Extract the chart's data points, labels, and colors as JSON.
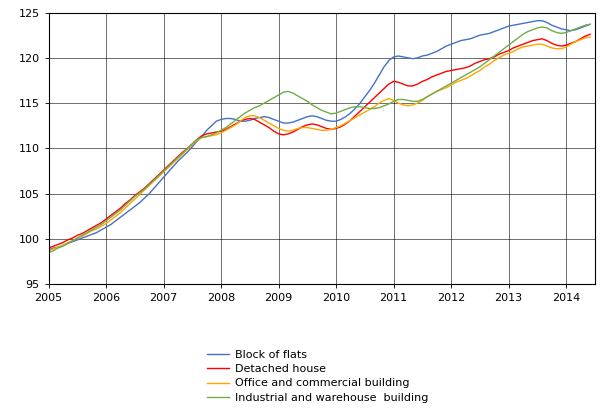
{
  "ylim": [
    95,
    125
  ],
  "yticks": [
    95,
    100,
    105,
    110,
    115,
    120,
    125
  ],
  "colors": {
    "block_of_flats": "#4472C4",
    "detached_house": "#FF0000",
    "office_commercial": "#FFA500",
    "industrial_warehouse": "#70AD47"
  },
  "legend_labels": [
    "Block of flats",
    "Detached house",
    "Office and commercial building",
    "Industrial and warehouse  building"
  ],
  "year_ticks": [
    2005,
    2006,
    2007,
    2008,
    2009,
    2010,
    2011,
    2012,
    2013,
    2014
  ],
  "block_of_flats": [
    98.8,
    99.0,
    99.1,
    99.3,
    99.5,
    99.7,
    99.9,
    100.1,
    100.3,
    100.5,
    100.7,
    101.0,
    101.3,
    101.6,
    102.0,
    102.4,
    102.8,
    103.2,
    103.6,
    104.0,
    104.5,
    105.0,
    105.6,
    106.2,
    106.8,
    107.4,
    108.0,
    108.6,
    109.1,
    109.6,
    110.2,
    110.8,
    111.3,
    112.0,
    112.5,
    113.0,
    113.2,
    113.3,
    113.3,
    113.2,
    113.0,
    113.0,
    113.1,
    113.3,
    113.4,
    113.5,
    113.4,
    113.2,
    113.0,
    112.8,
    112.8,
    112.9,
    113.1,
    113.3,
    113.5,
    113.6,
    113.5,
    113.3,
    113.1,
    113.0,
    113.0,
    113.2,
    113.5,
    113.9,
    114.4,
    115.0,
    115.7,
    116.4,
    117.2,
    118.1,
    119.0,
    119.7,
    120.1,
    120.2,
    120.1,
    120.0,
    119.9,
    120.0,
    120.2,
    120.3,
    120.5,
    120.7,
    121.0,
    121.3,
    121.5,
    121.7,
    121.9,
    122.0,
    122.1,
    122.3,
    122.5,
    122.6,
    122.7,
    122.9,
    123.1,
    123.3,
    123.5,
    123.6,
    123.7,
    123.8,
    123.9,
    124.0,
    124.1,
    124.1,
    123.9,
    123.6,
    123.4,
    123.2,
    123.1,
    123.0,
    123.1,
    123.3,
    123.5,
    123.7
  ],
  "detached_house": [
    99.0,
    99.2,
    99.4,
    99.6,
    99.9,
    100.1,
    100.4,
    100.6,
    100.9,
    101.2,
    101.5,
    101.8,
    102.2,
    102.6,
    103.0,
    103.4,
    103.9,
    104.3,
    104.8,
    105.2,
    105.6,
    106.1,
    106.6,
    107.1,
    107.6,
    108.1,
    108.6,
    109.1,
    109.6,
    110.0,
    110.5,
    111.0,
    111.4,
    111.6,
    111.7,
    111.8,
    111.9,
    112.1,
    112.4,
    112.7,
    113.0,
    113.2,
    113.3,
    113.2,
    112.9,
    112.6,
    112.3,
    111.9,
    111.6,
    111.5,
    111.6,
    111.8,
    112.1,
    112.4,
    112.6,
    112.7,
    112.6,
    112.4,
    112.2,
    112.1,
    112.2,
    112.4,
    112.7,
    113.1,
    113.6,
    114.1,
    114.6,
    115.1,
    115.6,
    116.1,
    116.6,
    117.1,
    117.4,
    117.3,
    117.1,
    116.9,
    116.9,
    117.1,
    117.4,
    117.6,
    117.9,
    118.1,
    118.3,
    118.5,
    118.6,
    118.7,
    118.8,
    118.9,
    119.1,
    119.4,
    119.6,
    119.8,
    119.9,
    120.1,
    120.4,
    120.6,
    120.8,
    121.1,
    121.3,
    121.5,
    121.7,
    121.9,
    122.0,
    122.1,
    121.9,
    121.6,
    121.4,
    121.3,
    121.4,
    121.6,
    121.8,
    122.1,
    122.4,
    122.6
  ],
  "office_commercial": [
    98.7,
    98.9,
    99.1,
    99.3,
    99.6,
    99.8,
    100.1,
    100.3,
    100.6,
    100.9,
    101.1,
    101.4,
    101.7,
    102.1,
    102.5,
    102.9,
    103.4,
    103.9,
    104.4,
    104.9,
    105.4,
    105.9,
    106.4,
    106.9,
    107.4,
    107.9,
    108.4,
    108.9,
    109.4,
    109.9,
    110.4,
    110.9,
    111.2,
    111.3,
    111.4,
    111.5,
    111.7,
    112.0,
    112.3,
    112.6,
    113.0,
    113.4,
    113.6,
    113.6,
    113.4,
    113.1,
    112.8,
    112.5,
    112.2,
    112.0,
    111.9,
    112.0,
    112.2,
    112.3,
    112.3,
    112.2,
    112.1,
    112.0,
    112.0,
    112.1,
    112.3,
    112.5,
    112.8,
    113.1,
    113.4,
    113.7,
    114.0,
    114.3,
    114.6,
    115.0,
    115.3,
    115.5,
    115.3,
    115.0,
    114.8,
    114.7,
    114.8,
    115.0,
    115.3,
    115.7,
    116.0,
    116.3,
    116.5,
    116.7,
    117.0,
    117.3,
    117.5,
    117.7,
    118.0,
    118.3,
    118.6,
    119.0,
    119.3,
    119.7,
    120.0,
    120.3,
    120.5,
    120.7,
    121.0,
    121.2,
    121.3,
    121.4,
    121.5,
    121.5,
    121.3,
    121.1,
    121.0,
    121.0,
    121.2,
    121.5,
    121.8,
    122.0,
    122.2,
    122.3
  ],
  "industrial_warehouse": [
    98.5,
    98.7,
    99.0,
    99.2,
    99.5,
    99.8,
    100.1,
    100.4,
    100.7,
    101.0,
    101.3,
    101.6,
    102.0,
    102.4,
    102.8,
    103.2,
    103.7,
    104.2,
    104.7,
    105.1,
    105.5,
    106.0,
    106.5,
    107.0,
    107.5,
    108.0,
    108.5,
    109.0,
    109.5,
    110.0,
    110.5,
    111.0,
    111.2,
    111.3,
    111.5,
    111.7,
    112.0,
    112.3,
    112.7,
    113.1,
    113.5,
    113.9,
    114.2,
    114.5,
    114.7,
    115.0,
    115.3,
    115.6,
    115.9,
    116.2,
    116.3,
    116.1,
    115.8,
    115.5,
    115.2,
    114.8,
    114.5,
    114.2,
    114.0,
    113.8,
    113.9,
    114.1,
    114.3,
    114.5,
    114.6,
    114.6,
    114.5,
    114.4,
    114.4,
    114.5,
    114.7,
    114.9,
    115.2,
    115.4,
    115.4,
    115.3,
    115.2,
    115.2,
    115.4,
    115.7,
    116.0,
    116.3,
    116.6,
    116.9,
    117.2,
    117.5,
    117.8,
    118.1,
    118.4,
    118.7,
    119.0,
    119.4,
    119.8,
    120.2,
    120.6,
    121.0,
    121.4,
    121.8,
    122.2,
    122.6,
    122.9,
    123.1,
    123.3,
    123.4,
    123.3,
    123.0,
    122.8,
    122.7,
    122.8,
    123.0,
    123.2,
    123.4,
    123.6,
    123.7
  ]
}
